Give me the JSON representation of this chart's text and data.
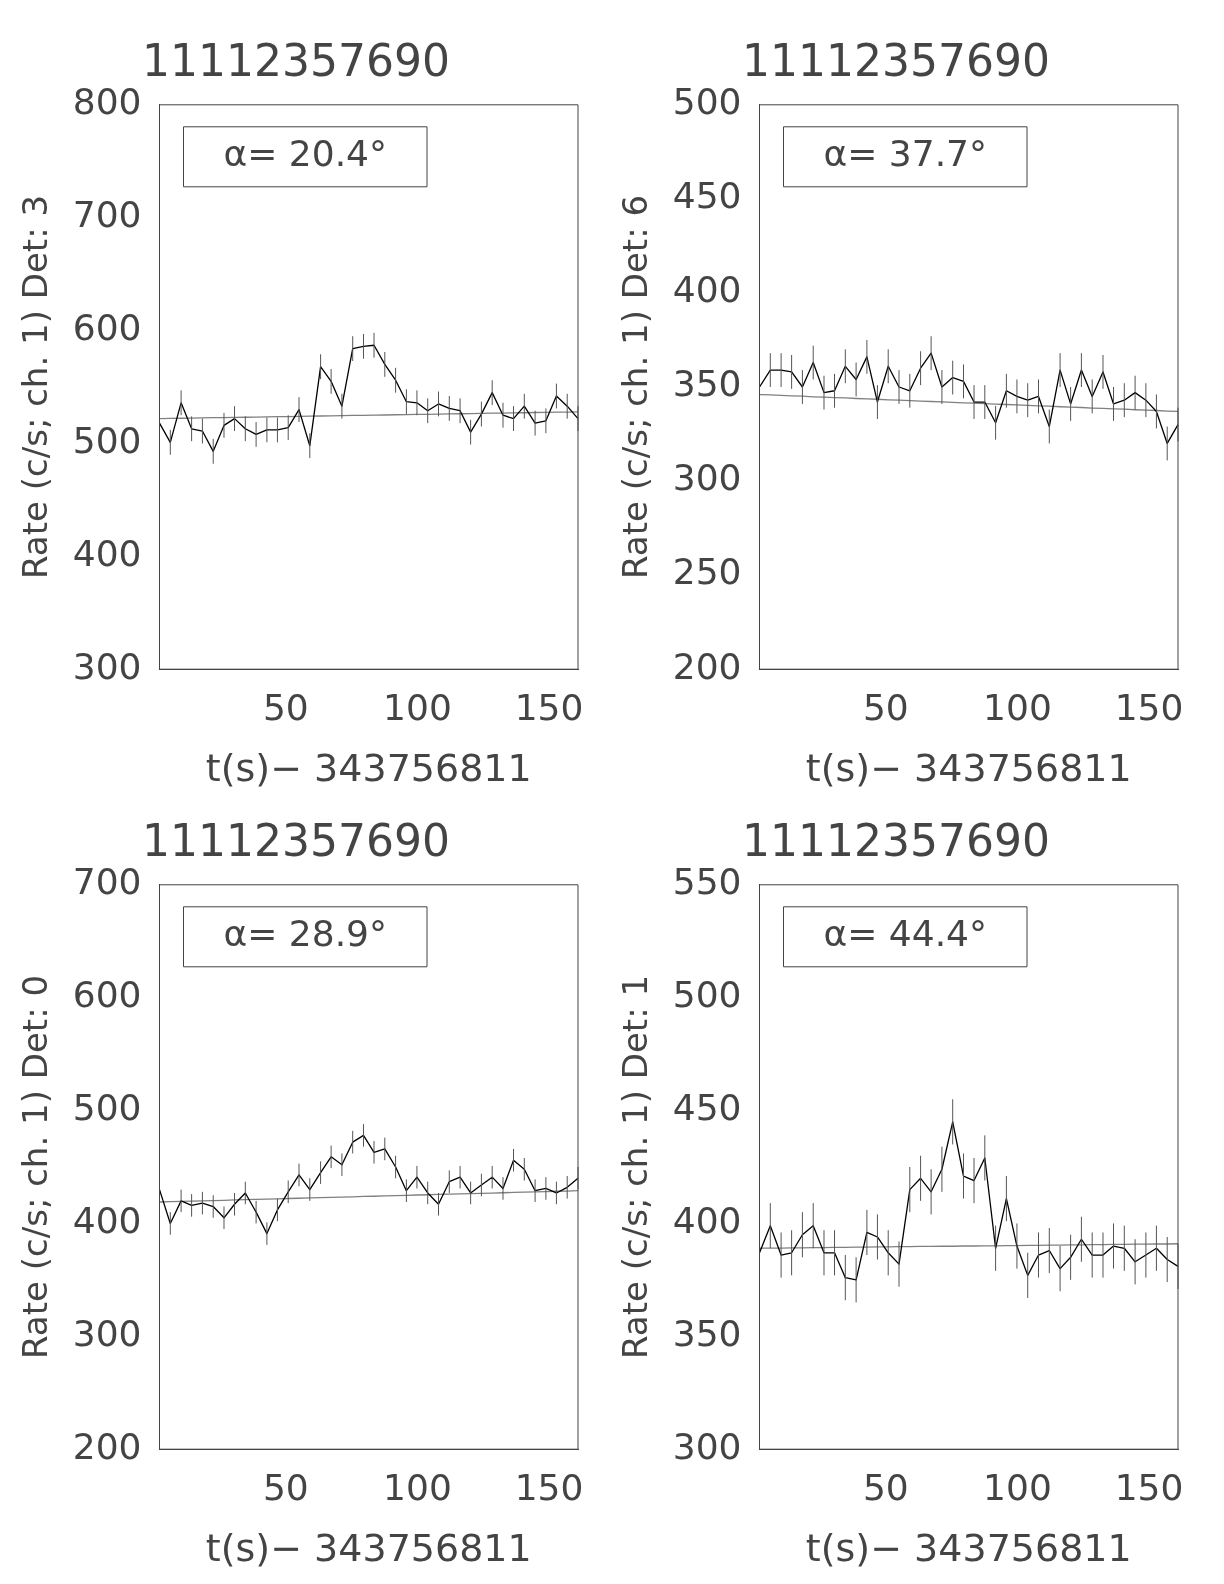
{
  "chart_data": [
    {
      "type": "line",
      "title": "11112357690",
      "xlabel": "t(s)− 343756811",
      "ylabel": "Rate (c/s; ch. 1) Det: 3",
      "annotations": [
        "α= 20.4°"
      ],
      "xlim": [
        2,
        161
      ],
      "xticks": [
        50,
        100,
        150
      ],
      "ylim": [
        300,
        800
      ],
      "yticks": [
        300,
        400,
        500,
        600,
        700,
        800
      ],
      "grid": false,
      "legend": false,
      "marker": "none",
      "line_style": "solid",
      "x": [
        2.0,
        6.1,
        10.2,
        14.2,
        18.3,
        22.4,
        26.5,
        30.5,
        34.6,
        38.7,
        42.8,
        46.8,
        50.9,
        55.0,
        59.1,
        63.2,
        67.2,
        71.3,
        75.4,
        79.5,
        83.5,
        87.6,
        91.7,
        95.8,
        99.8,
        103.9,
        108.0,
        112.1,
        116.2,
        120.2,
        124.3,
        128.4,
        132.5,
        136.5,
        140.6,
        144.7,
        148.8,
        152.8,
        156.9,
        161.0
      ],
      "series": [
        {
          "color": "#000000",
          "values": [
            518,
            501,
            536,
            513,
            511,
            493,
            516,
            522,
            513,
            508,
            512,
            512,
            514,
            530,
            498,
            568,
            555,
            533,
            584,
            586,
            587,
            570,
            556,
            537,
            536,
            529,
            535,
            531,
            529,
            510,
            526,
            545,
            525,
            522,
            533,
            518,
            520,
            542,
            533,
            522
          ],
          "errors": [
            11,
            11,
            11,
            11,
            11,
            11,
            11,
            11,
            11,
            11,
            11,
            11,
            11,
            11,
            11,
            11,
            11,
            11,
            11,
            11,
            11,
            11,
            11,
            11,
            11,
            11,
            11,
            11,
            11,
            11,
            11,
            11,
            11,
            11,
            11,
            11,
            11,
            11,
            11,
            11
          ]
        },
        {
          "type": "line",
          "color": "#808080",
          "values": [
            522.0,
            522.2,
            522.3,
            522.5,
            522.6,
            522.8,
            522.9,
            523.1,
            523.2,
            523.4,
            523.5,
            523.7,
            523.8,
            524.0,
            524.2,
            524.3,
            524.5,
            524.6,
            524.8,
            524.9,
            525.1,
            525.2,
            525.4,
            525.5,
            525.7,
            525.8,
            526.0,
            526.2,
            526.3,
            526.5,
            526.6,
            526.8,
            526.9,
            527.1,
            527.2,
            527.4,
            527.5,
            527.7,
            527.8,
            528.0
          ]
        }
      ]
    },
    {
      "type": "line",
      "title": "11112357690",
      "xlabel": "t(s)− 343756811",
      "ylabel": "Rate (c/s; ch. 1) Det: 6",
      "annotations": [
        "α= 37.7°"
      ],
      "xlim": [
        2,
        161
      ],
      "xticks": [
        50,
        100,
        150
      ],
      "ylim": [
        200,
        500
      ],
      "yticks": [
        200,
        250,
        300,
        350,
        400,
        450,
        500
      ],
      "grid": false,
      "legend": false,
      "marker": "none",
      "line_style": "solid",
      "x": [
        2.0,
        6.1,
        10.2,
        14.2,
        18.3,
        22.4,
        26.5,
        30.5,
        34.6,
        38.7,
        42.8,
        46.8,
        50.9,
        55.0,
        59.1,
        63.2,
        67.2,
        71.3,
        75.4,
        79.5,
        83.5,
        87.6,
        91.7,
        95.8,
        99.8,
        103.9,
        108.0,
        112.1,
        116.2,
        120.2,
        124.3,
        128.4,
        132.5,
        136.5,
        140.6,
        144.7,
        148.8,
        152.8,
        156.9,
        161.0
      ],
      "series": [
        {
          "color": "#000000",
          "values": [
            350,
            359,
            359,
            358,
            350,
            363,
            347,
            348,
            361,
            354,
            366,
            342,
            361,
            350,
            348,
            360,
            368,
            350,
            355,
            353,
            342,
            342,
            331,
            348,
            345,
            343,
            345,
            329,
            359,
            341,
            359,
            345,
            358,
            341,
            343,
            347,
            343,
            337,
            320,
            330
          ],
          "errors": [
            9,
            9,
            9,
            9,
            9,
            9,
            9,
            9,
            9,
            9,
            9,
            9,
            9,
            9,
            9,
            9,
            9,
            9,
            9,
            9,
            9,
            9,
            9,
            9,
            9,
            9,
            9,
            9,
            9,
            9,
            9,
            9,
            9,
            9,
            9,
            9,
            9,
            9,
            9,
            9
          ]
        },
        {
          "type": "line",
          "color": "#808080",
          "values": [
            346.0,
            345.8,
            345.5,
            345.3,
            345.1,
            344.8,
            344.6,
            344.4,
            344.2,
            343.9,
            343.7,
            343.5,
            343.2,
            343.0,
            342.8,
            342.5,
            342.3,
            342.1,
            341.8,
            341.6,
            341.4,
            341.2,
            340.9,
            340.7,
            340.5,
            340.2,
            340.0,
            339.8,
            339.5,
            339.3,
            339.1,
            338.8,
            338.6,
            338.4,
            338.2,
            337.9,
            337.7,
            337.5,
            337.2,
            337.0
          ]
        }
      ]
    },
    {
      "type": "line",
      "title": "11112357690",
      "xlabel": "t(s)− 343756811",
      "ylabel": "Rate (c/s; ch. 1) Det: 0",
      "annotations": [
        "α= 28.9°"
      ],
      "xlim": [
        2,
        161
      ],
      "xticks": [
        50,
        100,
        150
      ],
      "ylim": [
        200,
        700
      ],
      "yticks": [
        200,
        300,
        400,
        500,
        600,
        700
      ],
      "grid": false,
      "legend": false,
      "marker": "none",
      "line_style": "solid",
      "x": [
        2.0,
        6.1,
        10.2,
        14.2,
        18.3,
        22.4,
        26.5,
        30.5,
        34.6,
        38.7,
        42.8,
        46.8,
        50.9,
        55.0,
        59.1,
        63.2,
        67.2,
        71.3,
        75.4,
        79.5,
        83.5,
        87.6,
        91.7,
        95.8,
        99.8,
        103.9,
        108.0,
        112.1,
        116.2,
        120.2,
        124.3,
        128.4,
        132.5,
        136.5,
        140.6,
        144.7,
        148.8,
        152.8,
        156.9,
        161.0
      ],
      "series": [
        {
          "color": "#000000",
          "values": [
            430,
            400,
            420,
            416,
            418,
            415,
            405,
            417,
            427,
            410,
            391,
            412,
            428,
            443,
            430,
            445,
            459,
            452,
            472,
            478,
            463,
            466,
            450,
            429,
            441,
            427,
            417,
            437,
            441,
            427,
            434,
            441,
            431,
            456,
            448,
            429,
            431,
            427,
            432,
            440
          ],
          "errors": [
            10,
            10,
            10,
            10,
            10,
            10,
            10,
            10,
            10,
            10,
            10,
            10,
            10,
            10,
            10,
            10,
            10,
            10,
            10,
            10,
            10,
            10,
            10,
            10,
            10,
            10,
            10,
            10,
            10,
            10,
            10,
            10,
            10,
            10,
            10,
            10,
            10,
            10,
            10,
            10
          ]
        },
        {
          "type": "line",
          "color": "#808080",
          "values": [
            419.0,
            419.3,
            419.5,
            419.8,
            420.0,
            420.3,
            420.5,
            420.8,
            421.1,
            421.3,
            421.6,
            421.8,
            422.1,
            422.3,
            422.6,
            422.8,
            423.1,
            423.4,
            423.6,
            423.9,
            424.1,
            424.4,
            424.6,
            424.9,
            425.2,
            425.4,
            425.7,
            425.9,
            426.2,
            426.4,
            426.7,
            426.9,
            427.2,
            427.5,
            427.7,
            428.0,
            428.2,
            428.5,
            428.7,
            429.0
          ]
        }
      ]
    },
    {
      "type": "line",
      "title": "11112357690",
      "xlabel": "t(s)− 343756811",
      "ylabel": "Rate (c/s; ch. 1) Det: 1",
      "annotations": [
        "α= 44.4°"
      ],
      "xlim": [
        2,
        161
      ],
      "xticks": [
        50,
        100,
        150
      ],
      "ylim": [
        300,
        550
      ],
      "yticks": [
        300,
        350,
        400,
        450,
        500,
        550
      ],
      "grid": false,
      "legend": false,
      "marker": "none",
      "line_style": "solid",
      "x": [
        2.0,
        6.1,
        10.2,
        14.2,
        18.3,
        22.4,
        26.5,
        30.5,
        34.6,
        38.7,
        42.8,
        46.8,
        50.9,
        55.0,
        59.1,
        63.2,
        67.2,
        71.3,
        75.4,
        79.5,
        83.5,
        87.6,
        91.7,
        95.8,
        99.8,
        103.9,
        108.0,
        112.1,
        116.2,
        120.2,
        124.3,
        128.4,
        132.5,
        136.5,
        140.6,
        144.7,
        148.8,
        152.8,
        156.9,
        161.0
      ],
      "series": [
        {
          "color": "#000000",
          "values": [
            387,
            399,
            386,
            387,
            395,
            399,
            387,
            387,
            376,
            375,
            396,
            394,
            387,
            382,
            415,
            420,
            414,
            424,
            445,
            421,
            419,
            429,
            389,
            411,
            390,
            377,
            386,
            388,
            380,
            385,
            393,
            386,
            386,
            390,
            389,
            383,
            386,
            389,
            384,
            381
          ],
          "errors": [
            10,
            10,
            10,
            10,
            10,
            10,
            10,
            10,
            10,
            10,
            10,
            10,
            10,
            10,
            10,
            10,
            10,
            10,
            10,
            10,
            10,
            10,
            10,
            10,
            10,
            10,
            10,
            10,
            10,
            10,
            10,
            10,
            10,
            10,
            10,
            10,
            10,
            10,
            10,
            10
          ]
        },
        {
          "type": "line",
          "color": "#808080",
          "values": [
            389.0,
            389.1,
            389.1,
            389.2,
            389.2,
            389.3,
            389.3,
            389.4,
            389.4,
            389.5,
            389.5,
            389.6,
            389.6,
            389.7,
            389.7,
            389.8,
            389.8,
            389.9,
            389.9,
            390.0,
            390.0,
            390.1,
            390.1,
            390.2,
            390.2,
            390.3,
            390.3,
            390.4,
            390.4,
            390.5,
            390.5,
            390.6,
            390.6,
            390.7,
            390.7,
            390.8,
            390.8,
            390.9,
            390.9,
            391.0
          ]
        }
      ]
    }
  ]
}
